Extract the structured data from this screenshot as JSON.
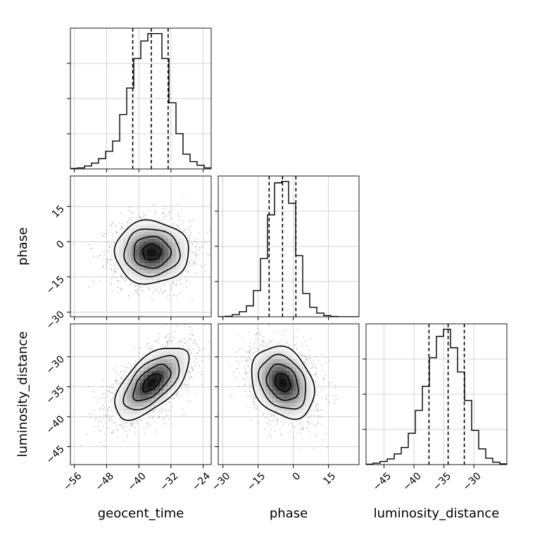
{
  "chart_data": {
    "type": "corner",
    "parameters": [
      "geocent_time",
      "phase",
      "luminosity_distance"
    ],
    "axis_labels": {
      "x": [
        "geocent_time",
        "phase",
        "luminosity_distance"
      ],
      "y": [
        "phase",
        "luminosity_distance"
      ]
    },
    "ranges": {
      "geocent_time": [
        -57,
        -22
      ],
      "phase": [
        -32,
        28
      ],
      "luminosity_distance": [
        -48,
        -24.5
      ]
    },
    "ticks": {
      "geocent_time": [
        -56,
        -48,
        -40,
        -32,
        -24
      ],
      "phase": [
        -30,
        -15,
        0,
        15
      ],
      "luminosity_distance_x": [
        -45,
        -40,
        -35,
        -30
      ],
      "luminosity_distance_y": [
        -30,
        -35,
        -40,
        -45
      ]
    },
    "tick_labels": {
      "geocent_time": [
        "−56",
        "−48",
        "−40",
        "−32",
        "−24"
      ],
      "phase_x": [
        "−30",
        "−15",
        "0",
        "15"
      ],
      "phase_y": [
        "15",
        "0",
        "−15",
        "−30"
      ],
      "luminosity_distance_x": [
        "−45",
        "−40",
        "−35",
        "−30"
      ],
      "luminosity_distance_y": [
        "−30",
        "−35",
        "−40",
        "−45"
      ]
    },
    "histograms": {
      "geocent_time": {
        "bin_edges": [
          -57,
          -55.25,
          -53.5,
          -51.75,
          -50,
          -48.25,
          -46.5,
          -44.75,
          -43,
          -41.25,
          -39.5,
          -37.75,
          -36,
          -34.25,
          -32.5,
          -30.75,
          -29,
          -27.25,
          -25.5,
          -23.75,
          -22
        ],
        "counts": [
          0.3,
          0.7,
          2,
          4,
          7,
          12,
          19,
          37,
          55,
          75,
          87,
          92,
          92,
          75,
          45,
          24,
          10,
          5,
          2.5,
          0.7
        ],
        "quantiles": [
          -41.5,
          -36.9,
          -32.7
        ]
      },
      "phase": {
        "bin_edges": [
          -32,
          -29,
          -26,
          -23,
          -20,
          -17,
          -14,
          -11,
          -8,
          -5,
          -2,
          1,
          4,
          7,
          10,
          13,
          16,
          19,
          22,
          25,
          28
        ],
        "counts": [
          0,
          0.3,
          1.5,
          3.5,
          7.5,
          18,
          40,
          70,
          92,
          93,
          78,
          42,
          16,
          6.5,
          2.5,
          0.8,
          0.2,
          0,
          0,
          0
        ],
        "quantiles": [
          -10.3,
          -4.6,
          1.1
        ]
      },
      "luminosity_distance": {
        "bin_edges": [
          -48,
          -46.825,
          -45.65,
          -44.475,
          -43.3,
          -42.125,
          -40.95,
          -39.775,
          -38.6,
          -37.425,
          -36.25,
          -35.075,
          -33.9,
          -32.725,
          -31.55,
          -30.375,
          -29.2,
          -28.025,
          -26.85,
          -25.675,
          -24.5
        ],
        "counts": [
          0.3,
          1,
          2.2,
          4,
          7.5,
          12,
          22,
          38,
          55,
          75,
          90,
          95,
          82,
          65,
          45,
          24,
          11,
          4.5,
          1.7,
          0.5
        ],
        "quantiles": [
          -37.5,
          -34.3,
          -31.6
        ]
      }
    },
    "joint": [
      {
        "x": "geocent_time",
        "y": "phase",
        "center": [
          -36.8,
          -4.5
        ],
        "sigma": [
          4.6,
          6.7
        ],
        "correlation": 0.0
      },
      {
        "x": "geocent_time",
        "y": "luminosity_distance",
        "center": [
          -36.8,
          -34.3
        ],
        "sigma": [
          4.6,
          3.0
        ],
        "correlation": 0.6
      },
      {
        "x": "phase",
        "y": "luminosity_distance",
        "center": [
          -4.5,
          -34.3
        ],
        "sigma": [
          6.7,
          3.0
        ],
        "correlation": -0.25
      }
    ],
    "contour_levels_sigma": [
      0.5,
      1.0,
      1.5,
      2.0
    ]
  }
}
